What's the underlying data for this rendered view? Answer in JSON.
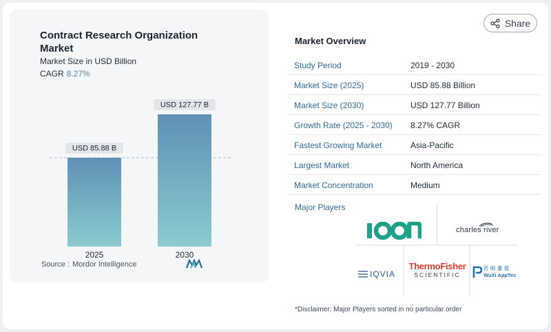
{
  "chart_card": {
    "title": "Contract Research Organization Market",
    "subtitle": "Market Size in USD Billion",
    "cagr_label": "CAGR",
    "cagr_value": "8.27%",
    "source_label": "Source :",
    "source_name": "Mordor Intelligence",
    "logo_icon": "mordor-intelligence-logo-icon"
  },
  "chart_data": {
    "type": "bar",
    "categories": [
      "2025",
      "2030"
    ],
    "values": [
      85.88,
      127.77
    ],
    "data_labels": [
      "USD 85.88 B",
      "USD 127.77 B"
    ],
    "title": "Contract Research Organization Market",
    "subtitle": "Market Size in USD Billion",
    "xlabel": "",
    "ylabel": "",
    "ylim": [
      0,
      135
    ],
    "grid": false,
    "reference_line": "dashed line at 2025 value",
    "bar_color_top": "#5f91b5",
    "bar_color_bottom": "#8ccbd0"
  },
  "share": {
    "label": "Share",
    "icon": "share-icon"
  },
  "overview": {
    "title": "Market Overview",
    "rows": [
      {
        "label": "Study Period",
        "value": "2019 - 2030"
      },
      {
        "label": "Market Size (2025)",
        "value": "USD 85.88 Billion"
      },
      {
        "label": "Market Size (2030)",
        "value": "USD 127.77 Billion"
      },
      {
        "label": "Growth Rate (2025 - 2030)",
        "value": "8.27% CAGR"
      },
      {
        "label": "Fastest Growing Market",
        "value": "Asia-Pacific"
      },
      {
        "label": "Largest Market",
        "value": "North America"
      },
      {
        "label": "Market Concentration",
        "value": "Medium"
      }
    ]
  },
  "players": {
    "title": "Major Players",
    "logos": [
      {
        "name": "ICON",
        "text": "ICON"
      },
      {
        "name": "Charles River",
        "text": "charles river"
      },
      {
        "name": "IQVIA",
        "text": "IQVIA"
      },
      {
        "name": "Thermo Fisher Scientific",
        "text": "ThermoFisher",
        "text2": "SCIENTIFIC"
      },
      {
        "name": "WuXi AppTec",
        "text": "WuXi AppTec",
        "text_cn": "药明康德"
      }
    ]
  },
  "disclaimer": "*Disclaimer: Major Players sorted in no particular order",
  "colors": {
    "accent_blue": "#2f6b9a",
    "cagr_blue": "#5b87a6",
    "icon_green": "#1fa088",
    "thermo_red": "#e03a2f",
    "iqvia_blue": "#2a5d9f",
    "wuxi_blue": "#1f6fb5"
  }
}
